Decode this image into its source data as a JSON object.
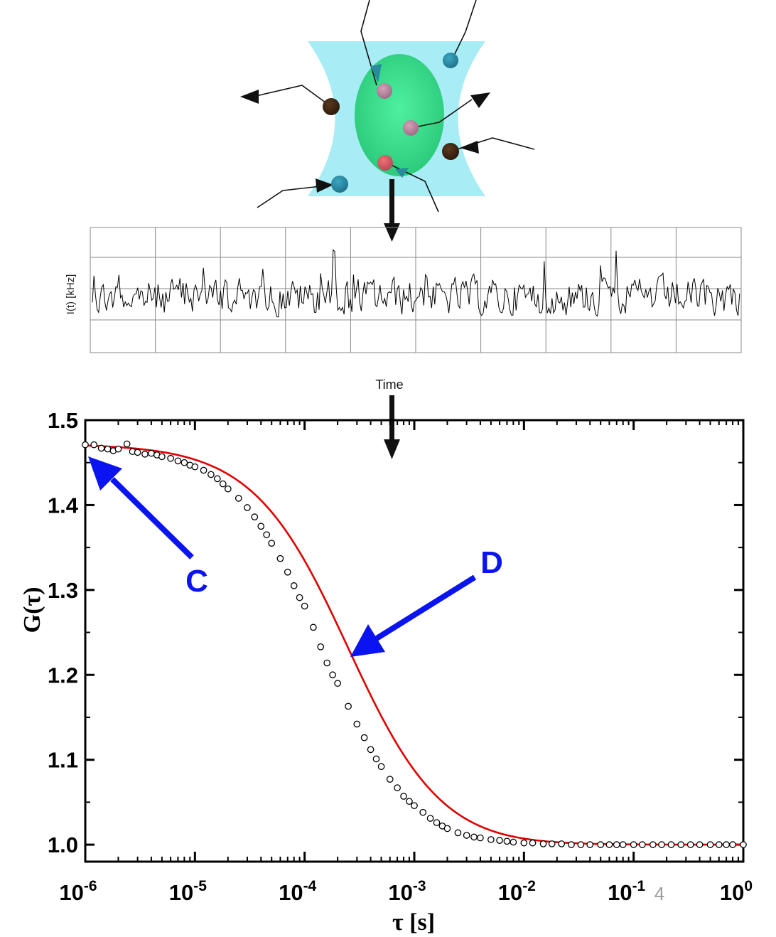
{
  "colors": {
    "laser_beam": "#a8ecf5",
    "focal_volume": "#3ddc8c",
    "fit_line": "#e00000",
    "annotation_arrow": "#0a14f0",
    "trace": "#000000"
  },
  "icons": [
    "downward-arrow-icon",
    "annotation-arrow-icon"
  ],
  "trace_panel": {
    "ylabel": "I(t) [kHz]",
    "xlabel": "Time"
  },
  "annotations": {
    "c_label": "C",
    "d_label": "D",
    "page_number": "4"
  },
  "chart_data": {
    "type": "scatter",
    "xscale": "log",
    "xlim": [
      1e-06,
      1
    ],
    "ylim": [
      0.98,
      1.5
    ],
    "ylabel": "G(τ)",
    "xlabel": "τ [s]",
    "xticks": [
      {
        "base": "10",
        "exp": "-6"
      },
      {
        "base": "10",
        "exp": "-5"
      },
      {
        "base": "10",
        "exp": "-4"
      },
      {
        "base": "10",
        "exp": "-3"
      },
      {
        "base": "10",
        "exp": "-2"
      },
      {
        "base": "10",
        "exp": "-1"
      },
      {
        "base": "10",
        "exp": "0"
      }
    ],
    "yticks": [
      "1.0",
      "1.1",
      "1.2",
      "1.3",
      "1.4",
      "1.5"
    ],
    "series": [
      {
        "kind": "data_points",
        "x": [
          1e-06,
          1.2e-06,
          1.4e-06,
          1.6e-06,
          1.8e-06,
          2e-06,
          2.4e-06,
          2.7e-06,
          3e-06,
          3.5e-06,
          4e-06,
          4.5e-06,
          5e-06,
          6e-06,
          7e-06,
          8e-06,
          9e-06,
          1e-05,
          1.2e-05,
          1.4e-05,
          1.6e-05,
          1.8e-05,
          2e-05,
          2.5e-05,
          3e-05,
          3.5e-05,
          4e-05,
          4.5e-05,
          5e-05,
          6e-05,
          7e-05,
          8e-05,
          9e-05,
          0.0001,
          0.00012,
          0.00014,
          0.00016,
          0.00018,
          0.0002,
          0.00025,
          0.0003,
          0.00035,
          0.0004,
          0.00045,
          0.0005,
          0.0006,
          0.0007,
          0.0008,
          0.0009,
          0.001,
          0.0012,
          0.0014,
          0.0016,
          0.0018,
          0.002,
          0.0025,
          0.003,
          0.0035,
          0.004,
          0.005,
          0.006,
          0.007,
          0.008,
          0.01,
          0.012,
          0.015,
          0.018,
          0.022,
          0.027,
          0.033,
          0.04,
          0.05,
          0.06,
          0.07,
          0.08,
          0.1,
          0.12,
          0.15,
          0.18,
          0.22,
          0.27,
          0.33,
          0.4,
          0.5,
          0.6,
          0.7,
          0.8,
          1
        ],
        "y": [
          1.471,
          1.471,
          1.467,
          1.466,
          1.464,
          1.466,
          1.472,
          1.463,
          1.462,
          1.46,
          1.461,
          1.459,
          1.457,
          1.455,
          1.452,
          1.45,
          1.447,
          1.445,
          1.441,
          1.436,
          1.431,
          1.425,
          1.419,
          1.408,
          1.397,
          1.386,
          1.375,
          1.365,
          1.355,
          1.337,
          1.321,
          1.305,
          1.291,
          1.281,
          1.256,
          1.233,
          1.214,
          1.2,
          1.19,
          1.163,
          1.142,
          1.126,
          1.112,
          1.101,
          1.092,
          1.077,
          1.067,
          1.057,
          1.051,
          1.046,
          1.038,
          1.031,
          1.026,
          1.022,
          1.019,
          1.014,
          1.011,
          1.009,
          1.008,
          1.006,
          1.005,
          1.004,
          1.003,
          1.002,
          1.002,
          1.001,
          1.001,
          1.001,
          1.0,
          1.0,
          1.0,
          1.0,
          1.0,
          1.0,
          1.0,
          1.0,
          1.0,
          1.0,
          1.0,
          1.0,
          1.0,
          1.0,
          1.0,
          1.0,
          1.0,
          1.0,
          1.0,
          1.0
        ]
      },
      {
        "kind": "fit_curve",
        "model": "diffusion",
        "g_inf": 1.0,
        "amplitude": 0.472,
        "tau_d": 0.00025,
        "structure_parameter": 5
      }
    ]
  }
}
